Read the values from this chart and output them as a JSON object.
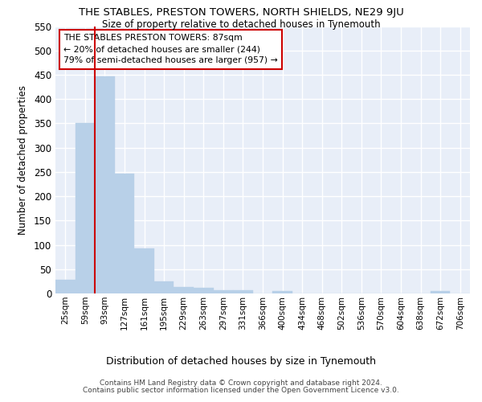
{
  "title": "THE STABLES, PRESTON TOWERS, NORTH SHIELDS, NE29 9JU",
  "subtitle": "Size of property relative to detached houses in Tynemouth",
  "xlabel": "Distribution of detached houses by size in Tynemouth",
  "ylabel": "Number of detached properties",
  "bar_color": "#b8d0e8",
  "bar_edge_color": "#b8d0e8",
  "background_color": "#e8eef8",
  "grid_color": "#ffffff",
  "bins": [
    "25sqm",
    "59sqm",
    "93sqm",
    "127sqm",
    "161sqm",
    "195sqm",
    "229sqm",
    "263sqm",
    "297sqm",
    "331sqm",
    "366sqm",
    "400sqm",
    "434sqm",
    "468sqm",
    "502sqm",
    "536sqm",
    "570sqm",
    "604sqm",
    "638sqm",
    "672sqm",
    "706sqm"
  ],
  "values": [
    28,
    350,
    447,
    247,
    93,
    25,
    14,
    11,
    7,
    6,
    0,
    5,
    0,
    0,
    0,
    0,
    0,
    0,
    0,
    5,
    0
  ],
  "annotation_line1": "THE STABLES PRESTON TOWERS: 87sqm",
  "annotation_line2": "← 20% of detached houses are smaller (244)",
  "annotation_line3": "79% of semi-detached houses are larger (957) →",
  "annotation_box_color": "#ffffff",
  "annotation_border_color": "#cc0000",
  "vline_color": "#cc0000",
  "vline_x": 2.0,
  "ylim": [
    0,
    550
  ],
  "yticks": [
    0,
    50,
    100,
    150,
    200,
    250,
    300,
    350,
    400,
    450,
    500,
    550
  ],
  "footer1": "Contains HM Land Registry data © Crown copyright and database right 2024.",
  "footer2": "Contains public sector information licensed under the Open Government Licence v3.0."
}
